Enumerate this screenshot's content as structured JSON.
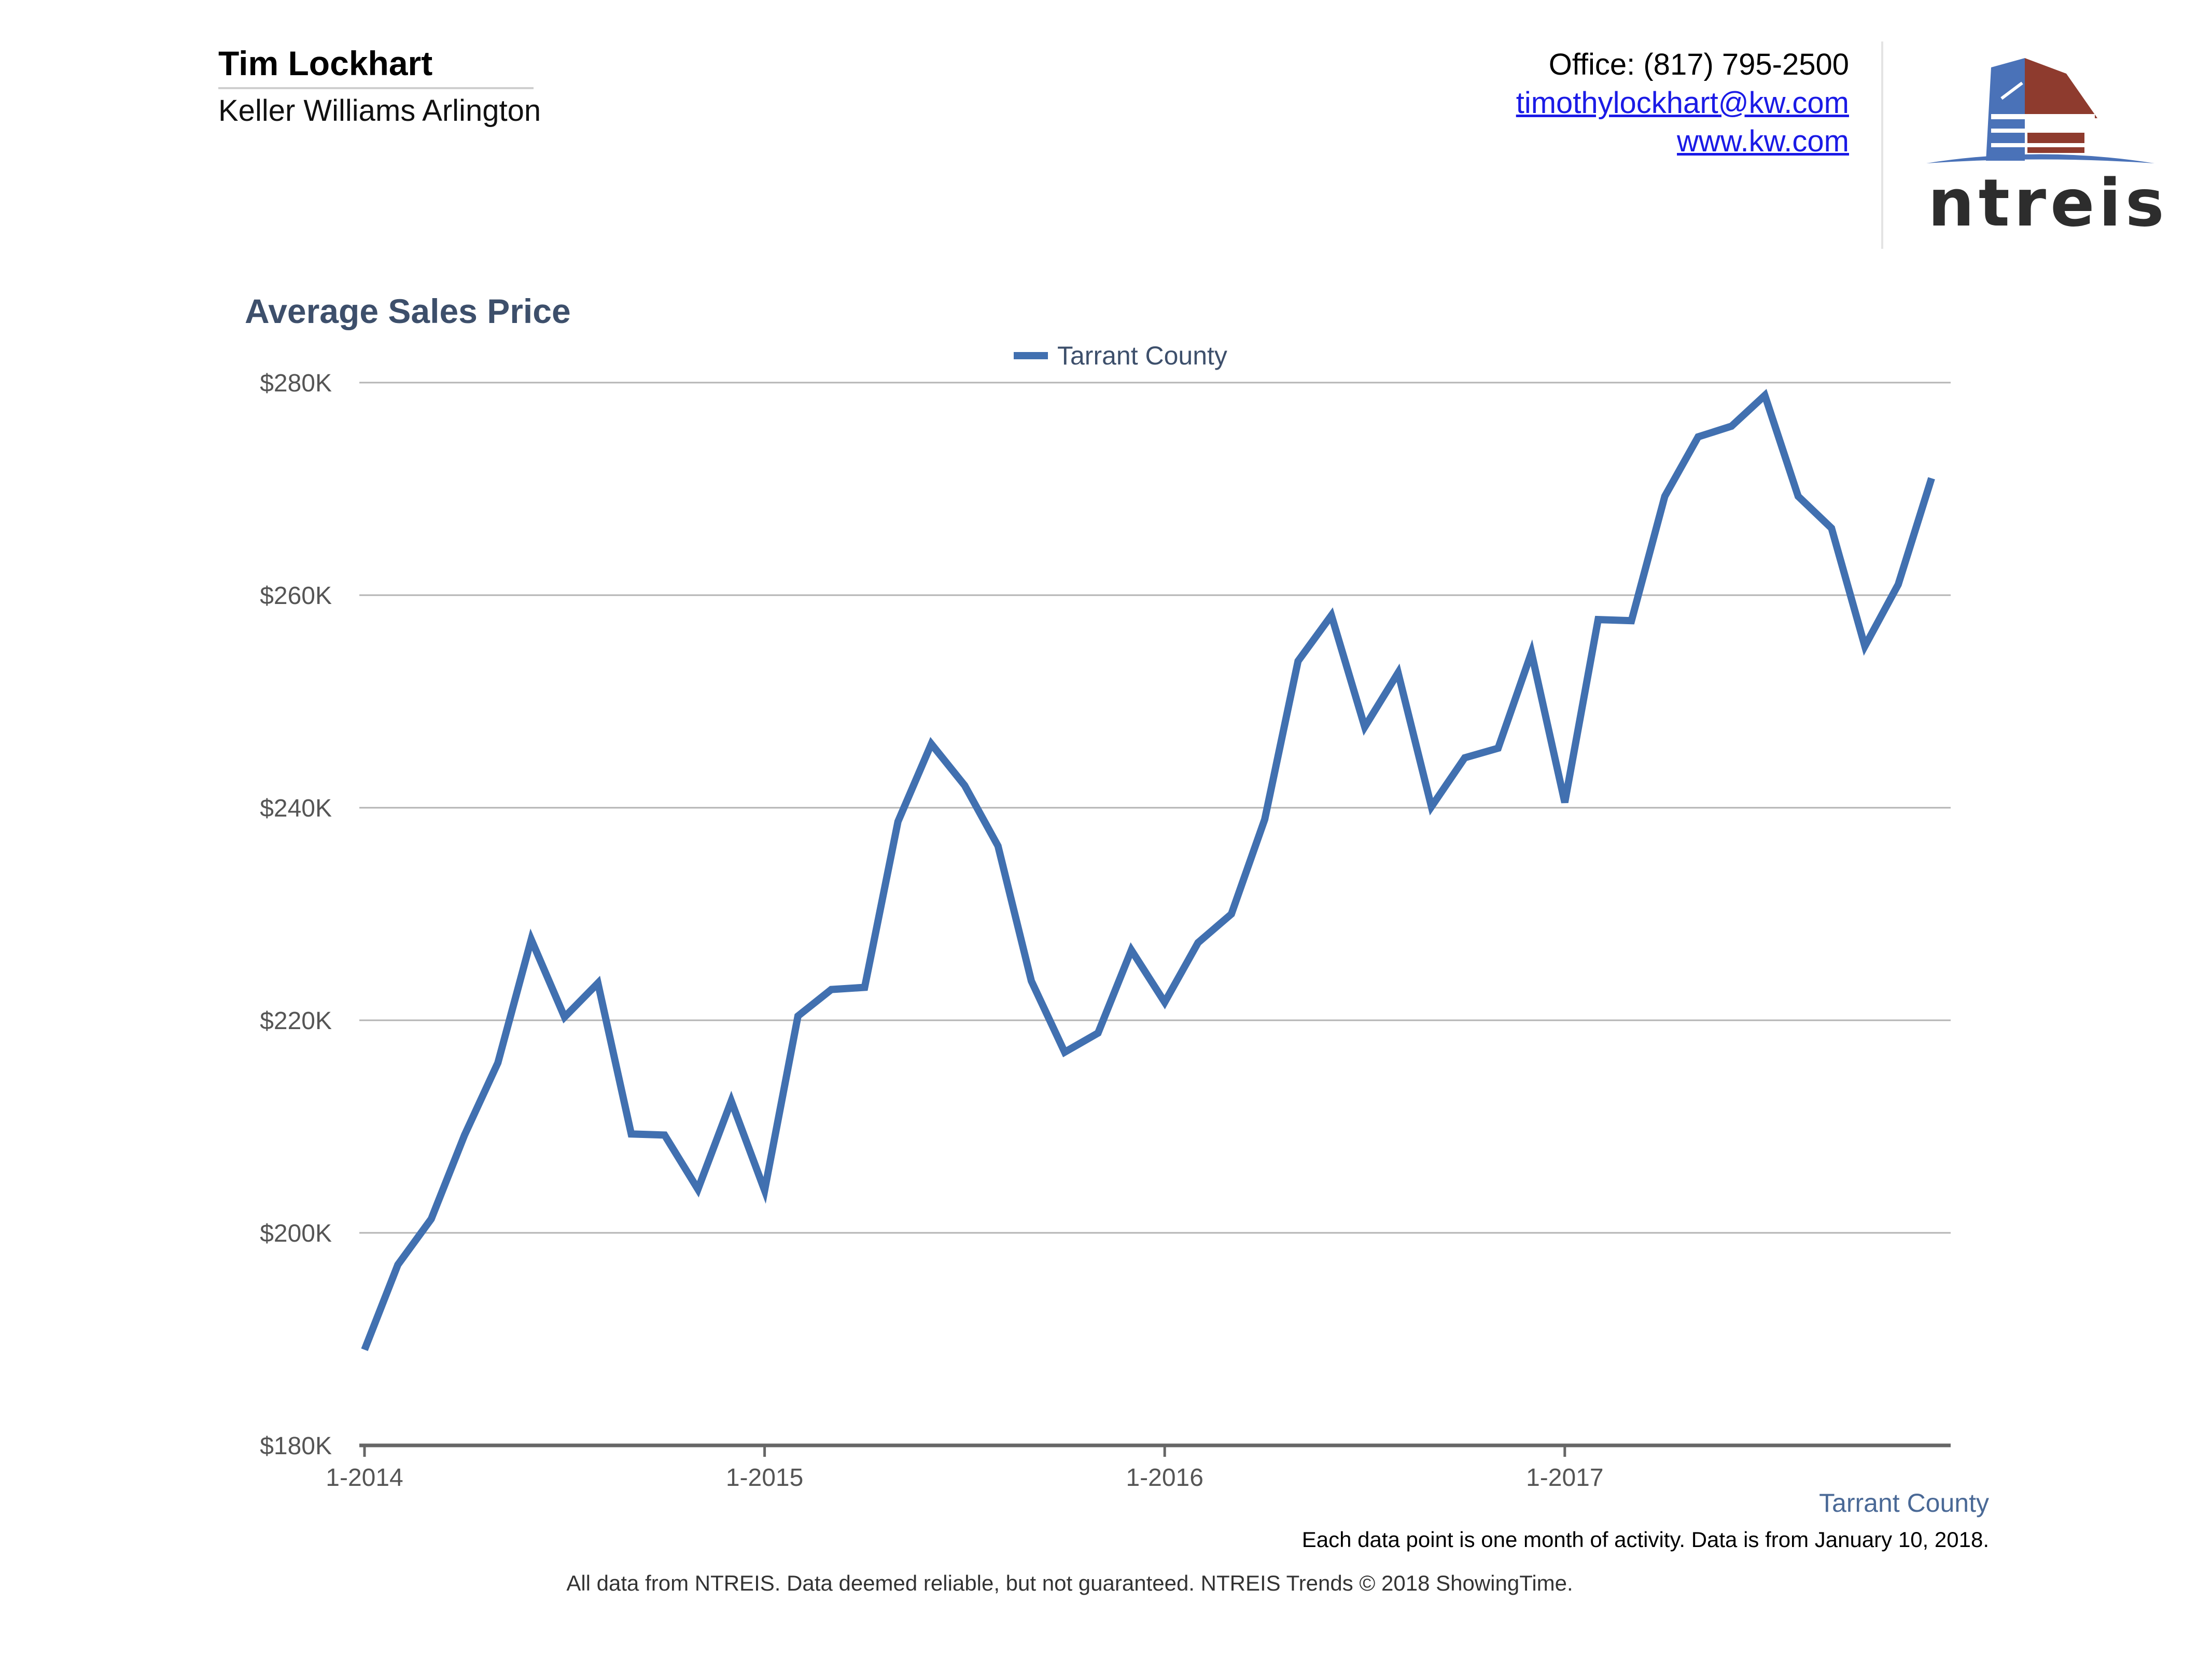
{
  "header": {
    "agent_name": "Tim Lockhart",
    "company": "Keller Williams Arlington",
    "office": "Office: (817) 795-2500",
    "email": "timothylockhart@kw.com",
    "website": "www.kw.com",
    "logo_text": "ntreis"
  },
  "colors": {
    "series": "#4170b0",
    "title": "#3d4f6b",
    "grid": "#b4b4b4",
    "logo_blue": "#4a72b8",
    "logo_red": "#8e3b2e"
  },
  "chart_data": {
    "type": "line",
    "title": "Average Sales Price",
    "xlabel": "",
    "ylabel": "",
    "ylim": [
      180000,
      280000
    ],
    "yticks": [
      180000,
      200000,
      220000,
      240000,
      260000,
      280000
    ],
    "ytick_labels": [
      "$180K",
      "$200K",
      "$220K",
      "$240K",
      "$260K",
      "$280K"
    ],
    "xtick_labels": [
      "1-2014",
      "1-2015",
      "1-2016",
      "1-2017"
    ],
    "xtick_months": [
      "2014-01",
      "2015-01",
      "2016-01",
      "2017-01"
    ],
    "grid": true,
    "legend": "top-center",
    "series": [
      {
        "name": "Tarrant County",
        "x": [
          "2014-01",
          "2014-02",
          "2014-03",
          "2014-04",
          "2014-05",
          "2014-06",
          "2014-07",
          "2014-08",
          "2014-09",
          "2014-10",
          "2014-11",
          "2014-12",
          "2015-01",
          "2015-02",
          "2015-03",
          "2015-04",
          "2015-05",
          "2015-06",
          "2015-07",
          "2015-08",
          "2015-09",
          "2015-10",
          "2015-11",
          "2015-12",
          "2016-01",
          "2016-02",
          "2016-03",
          "2016-04",
          "2016-05",
          "2016-06",
          "2016-07",
          "2016-08",
          "2016-09",
          "2016-10",
          "2016-11",
          "2016-12",
          "2017-01",
          "2017-02",
          "2017-03",
          "2017-04",
          "2017-05",
          "2017-06",
          "2017-07",
          "2017-08",
          "2017-09",
          "2017-10",
          "2017-11",
          "2017-12"
        ],
        "values": [
          189000,
          197000,
          201300,
          209200,
          216000,
          227600,
          220300,
          223500,
          209300,
          209200,
          204100,
          212400,
          204000,
          220400,
          222900,
          223100,
          238700,
          246000,
          242100,
          236400,
          223700,
          217000,
          218800,
          226600,
          221700,
          227300,
          230000,
          238900,
          253800,
          258100,
          247600,
          252700,
          240100,
          244700,
          245600,
          254600,
          240500,
          257700,
          257600,
          269300,
          274900,
          275900,
          278800,
          269300,
          266300,
          255200,
          261000,
          271000
        ]
      }
    ]
  },
  "series_label": "Tarrant County",
  "note": "Each data point is one month of activity. Data is from January 10, 2018.",
  "footer": "All data from NTREIS. Data deemed reliable, but not guaranteed. NTREIS Trends © 2018 ShowingTime."
}
